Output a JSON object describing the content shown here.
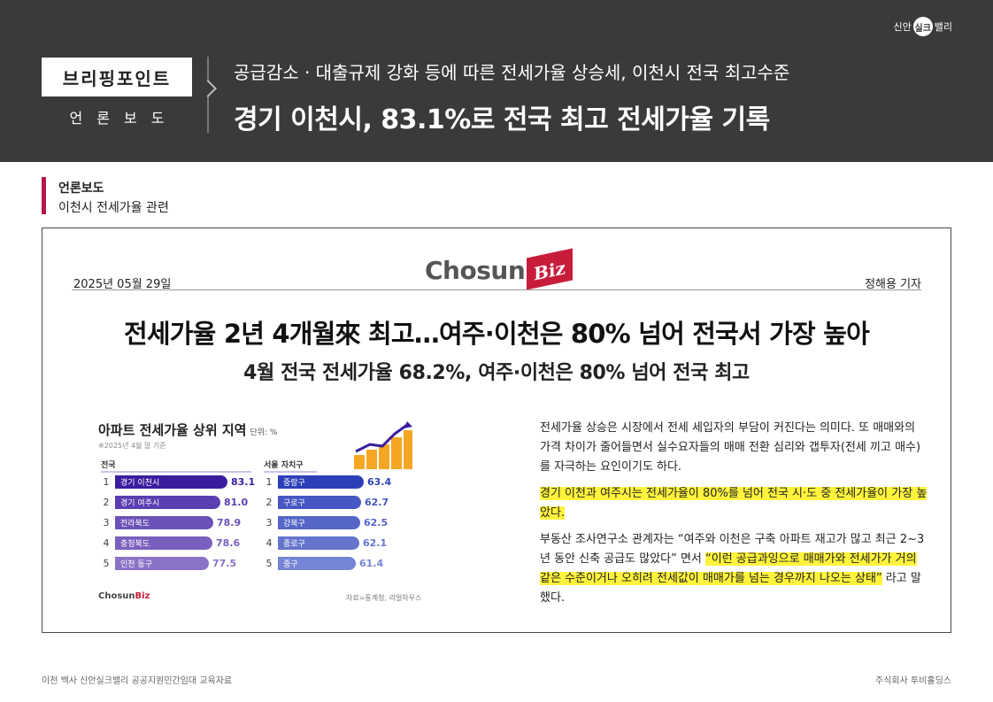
{
  "brand": {
    "left": "신안",
    "mid": "실크",
    "right": "밸리"
  },
  "header": {
    "tag": "브리핑포인트",
    "tag_sub": "언론보도",
    "subtitle": "공급감소 · 대출규제 강화 등에 따른 전세가율 상승세, 이천시 전국 최고수준",
    "title": "경기 이천시, 83.1%로 전국 최고 전세가율 기록"
  },
  "section": {
    "title": "언론보도",
    "desc": "이천시 전세가율 관련"
  },
  "article": {
    "logo_text": "Chosun",
    "logo_biz": "Biz",
    "date": "2025년 05월 29일",
    "author": "정해용 기자",
    "headline": "전세가율 2년 4개월來 최고…여주·이천은 80% 넘어 전국서 가장 높아",
    "subhead": "4월 전국 전세가율 68.2%, 여주·이천은 80% 넘어 전국 최고",
    "paragraphs": [
      "전세가율 상승은 시장에서 전세 세입자의 부담이 커진다는 의미다. 또 매매와의 가격 차이가 줄어들면서 실수요자들의 매매 전환 심리와 갭투자(전세 끼고 매수)를 자극하는 요인이기도 하다.",
      "경기 이천과 여주시는 전세가율이 80%를 넘어 전국 시·도 중 전세가율이 가장 높았다.",
      "부동산 조사연구소 관계자는 “여주와 이천은 구축 아파트 재고가 많고 최근 2~3년 동안 신축 공급도 많았다” 면서 ",
      "“이런 공급과잉으로 매매가와 전세가가 거의 같은 수준이거나 오히려 전세값이 매매가를 넘는 경우까지 나오는 상태”",
      " 라고 말했다."
    ]
  },
  "infographic": {
    "title": "아파트 전세가율 상위 지역",
    "unit": "단위: %",
    "note": "※2025년 4월 말 기준",
    "col_a": "전국",
    "col_b": "서울 자치구",
    "nation": [
      {
        "rank": "1",
        "name": "경기 이천시",
        "value": "83.1",
        "num": 83.1,
        "color": "#3a1d9e"
      },
      {
        "rank": "2",
        "name": "경기 여주시",
        "value": "81.0",
        "num": 81.0,
        "color": "#5b3eb0"
      },
      {
        "rank": "3",
        "name": "전라북도",
        "value": "78.9",
        "num": 78.9,
        "color": "#6b52b8"
      },
      {
        "rank": "4",
        "name": "충청북도",
        "value": "78.6",
        "num": 78.6,
        "color": "#7a60be"
      },
      {
        "rank": "5",
        "name": "인천 동구",
        "value": "77.5",
        "num": 77.5,
        "color": "#8a72c6"
      }
    ],
    "seoul": [
      {
        "rank": "1",
        "name": "중랑구",
        "value": "63.4",
        "num": 63.4,
        "color": "#2d3fb8"
      },
      {
        "rank": "2",
        "name": "구로구",
        "value": "62.7",
        "num": 62.7,
        "color": "#4656c2"
      },
      {
        "rank": "3",
        "name": "강북구",
        "value": "62.5",
        "num": 62.5,
        "color": "#5566c8"
      },
      {
        "rank": "4",
        "name": "종로구",
        "value": "62.1",
        "num": 62.1,
        "color": "#6575ce"
      },
      {
        "rank": "5",
        "name": "중구",
        "value": "61.4",
        "num": 61.4,
        "color": "#7584d4"
      }
    ],
    "logo_text": "Chosun",
    "logo_biz": "Biz",
    "source": "자료=통계청, 리얼하우스"
  },
  "footer": {
    "left": "이천 백사 신안실크밸리 공공지원민간임대 교육자료",
    "right": "주식회사 투비홀딩스"
  }
}
